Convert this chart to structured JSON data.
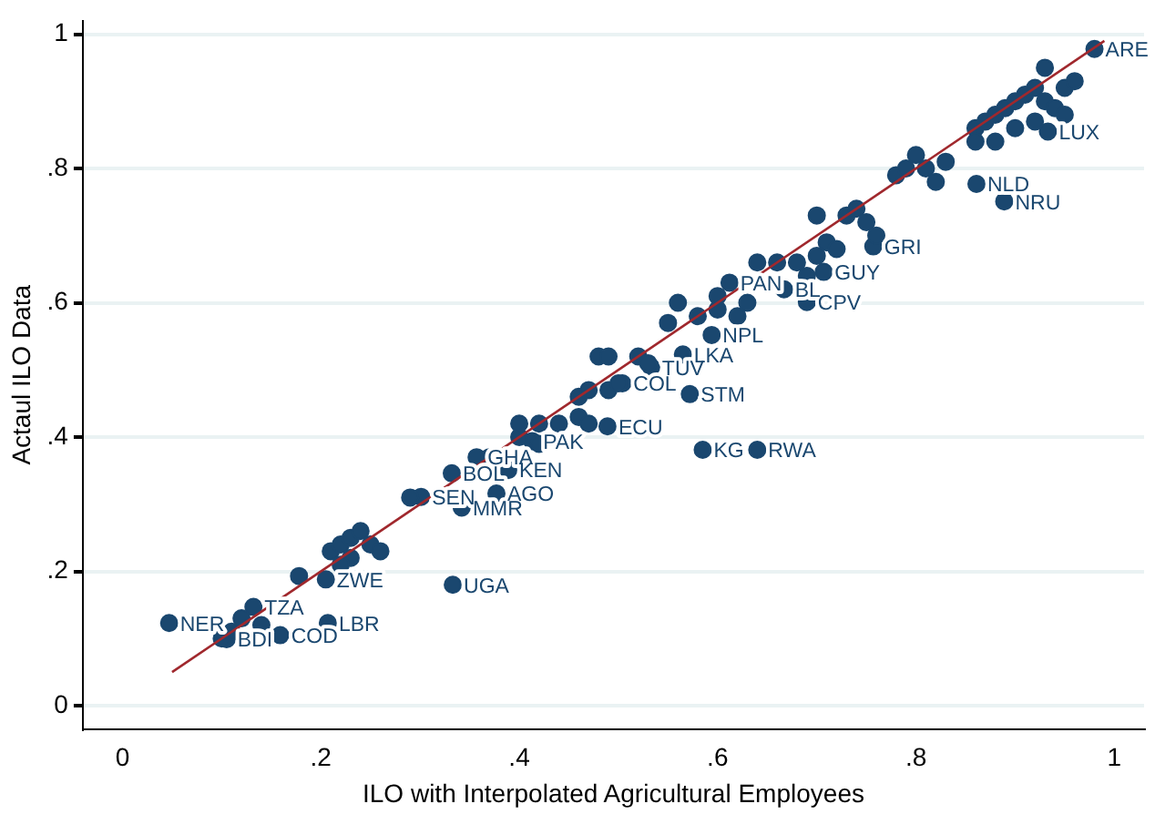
{
  "chart_data": {
    "type": "scatter",
    "xlabel": "ILO with Interpolated Agricultural Employees",
    "ylabel": "Actaul ILO Data",
    "xlim": [
      -0.04,
      1.03
    ],
    "ylim": [
      -0.035,
      1.02
    ],
    "xticks": [
      0,
      {
        "value": 0.2,
        "label": ".2"
      },
      {
        "value": 0.4,
        "label": ".4"
      },
      {
        "value": 0.6,
        "label": ".6"
      },
      {
        "value": 0.8,
        "label": ".8"
      },
      1
    ],
    "yticks": [
      0,
      {
        "value": 0.2,
        "label": ".2"
      },
      {
        "value": 0.4,
        "label": ".4"
      },
      {
        "value": 0.6,
        "label": ".6"
      },
      {
        "value": 0.8,
        "label": ".8"
      },
      1
    ],
    "grid": "y",
    "legend": false,
    "marker": "circle",
    "series": [
      {
        "color": "#1a476f",
        "x": [
          0.047,
          0.207,
          0.159,
          0.105,
          0.132,
          0.205,
          0.333,
          0.342,
          0.377,
          0.301,
          0.332,
          0.389,
          0.357,
          0.413,
          0.489,
          0.572,
          0.504,
          0.565,
          0.533,
          0.594,
          0.585,
          0.64,
          0.69,
          0.667,
          0.612,
          0.707,
          0.757,
          0.889,
          0.861,
          0.933,
          0.98,
          0.11,
          0.12,
          0.14,
          0.1,
          0.178,
          0.21,
          0.22,
          0.23,
          0.24,
          0.25,
          0.23,
          0.26,
          0.22,
          0.29,
          0.37,
          0.4,
          0.4,
          0.42,
          0.44,
          0.46,
          0.47,
          0.42,
          0.46,
          0.47,
          0.49,
          0.5,
          0.48,
          0.49,
          0.52,
          0.53,
          0.55,
          0.56,
          0.58,
          0.6,
          0.62,
          0.6,
          0.63,
          0.64,
          0.66,
          0.68,
          0.69,
          0.7,
          0.71,
          0.72,
          0.7,
          0.73,
          0.74,
          0.75,
          0.76,
          0.78,
          0.79,
          0.8,
          0.81,
          0.82,
          0.83,
          0.86,
          0.87,
          0.88,
          0.89,
          0.9,
          0.91,
          0.92,
          0.93,
          0.94,
          0.95,
          0.92,
          0.9,
          0.88,
          0.86,
          0.93,
          0.96,
          0.95
        ],
        "values": [
          0.123,
          0.123,
          0.105,
          0.099,
          0.147,
          0.188,
          0.18,
          0.295,
          0.316,
          0.311,
          0.346,
          0.351,
          0.37,
          0.394,
          0.416,
          0.464,
          0.48,
          0.523,
          0.504,
          0.552,
          0.381,
          0.381,
          0.601,
          0.62,
          0.63,
          0.646,
          0.684,
          0.751,
          0.777,
          0.855,
          0.978,
          0.11,
          0.13,
          0.12,
          0.1,
          0.193,
          0.23,
          0.24,
          0.25,
          0.26,
          0.24,
          0.22,
          0.23,
          0.21,
          0.31,
          0.37,
          0.4,
          0.42,
          0.42,
          0.42,
          0.43,
          0.42,
          0.39,
          0.46,
          0.47,
          0.47,
          0.48,
          0.52,
          0.52,
          0.52,
          0.51,
          0.57,
          0.6,
          0.58,
          0.59,
          0.58,
          0.61,
          0.6,
          0.66,
          0.66,
          0.66,
          0.64,
          0.67,
          0.69,
          0.68,
          0.73,
          0.73,
          0.74,
          0.72,
          0.7,
          0.79,
          0.8,
          0.82,
          0.8,
          0.78,
          0.81,
          0.86,
          0.87,
          0.88,
          0.89,
          0.9,
          0.91,
          0.92,
          0.9,
          0.89,
          0.92,
          0.87,
          0.86,
          0.84,
          0.84,
          0.95,
          0.93,
          0.88
        ],
        "value_labels": [
          "NER",
          "LBR",
          "COD",
          "BDI",
          "TZA",
          "ZWE",
          "UGA",
          "MMR",
          "AGO",
          "SEN",
          "BOL",
          "KEN",
          "GHA",
          "PAK",
          "ECU",
          "STM",
          "COL",
          "LKA",
          "TUV",
          "NPL",
          "KG",
          "RWA",
          "CPV",
          "BL",
          "PAN",
          "GUY",
          "GRI",
          "NRU",
          "NLD",
          "LUX",
          "ARE",
          null,
          null,
          null,
          null,
          null,
          null,
          null,
          null,
          null,
          null,
          null,
          null,
          null,
          null,
          null,
          null,
          null,
          null,
          null,
          null,
          null,
          null,
          null,
          null,
          null,
          null,
          null,
          null,
          null,
          null,
          null,
          null,
          null,
          null,
          null,
          null,
          null,
          null,
          null,
          null,
          null,
          null,
          null,
          null,
          null,
          null,
          null,
          null,
          null,
          null,
          null,
          null,
          null,
          null,
          null,
          null,
          null,
          null,
          null,
          null,
          null,
          null,
          null,
          null,
          null,
          null,
          null,
          null,
          null,
          null,
          null,
          null
        ]
      },
      {
        "type": "line",
        "color": "#a0282d",
        "line_style": "solid",
        "marker": "none",
        "x": [
          0.05,
          0.99
        ],
        "values": [
          0.05,
          0.99
        ]
      }
    ]
  }
}
